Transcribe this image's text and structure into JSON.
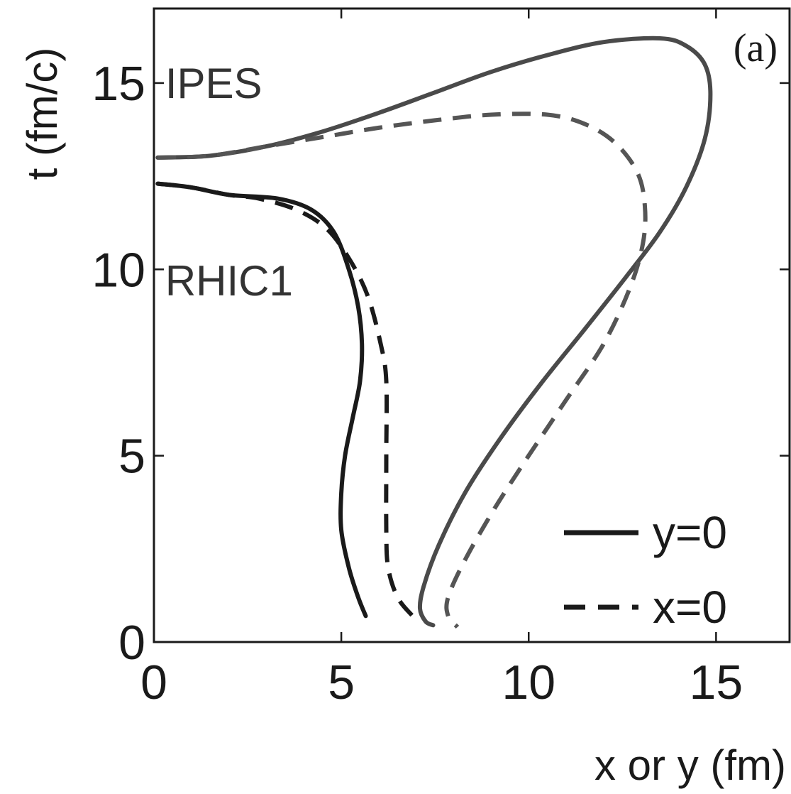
{
  "chart_data": {
    "type": "line",
    "title": "",
    "panel_label": "(a)",
    "xlabel": "x or y (fm)",
    "ylabel": "t (fm/c)",
    "xlim": [
      0,
      17
    ],
    "ylim": [
      0,
      17
    ],
    "xticks": [
      0,
      5,
      10,
      15
    ],
    "yticks": [
      0,
      5,
      10,
      15
    ],
    "grid": false,
    "legend": {
      "placement": "bottom-right",
      "entries": [
        {
          "label": "y=0",
          "style": "solid"
        },
        {
          "label": "x=0",
          "style": "dashed"
        }
      ]
    },
    "annotations": [
      {
        "text": "IPES",
        "x": 0.3,
        "y": 14.6
      },
      {
        "text": "RHIC1",
        "x": 0.3,
        "y": 9.3
      }
    ],
    "series": [
      {
        "group": "RHIC1",
        "style": "solid",
        "color": "#1a1a1a",
        "points": [
          [
            0.1,
            12.3
          ],
          [
            1.0,
            12.2
          ],
          [
            2.0,
            12.0
          ],
          [
            3.3,
            11.9
          ],
          [
            4.2,
            11.6
          ],
          [
            4.8,
            11.0
          ],
          [
            5.2,
            10.0
          ],
          [
            5.45,
            9.0
          ],
          [
            5.55,
            8.0
          ],
          [
            5.5,
            7.0
          ],
          [
            5.3,
            6.0
          ],
          [
            5.1,
            5.0
          ],
          [
            5.0,
            4.0
          ],
          [
            5.0,
            3.0
          ],
          [
            5.2,
            2.0
          ],
          [
            5.45,
            1.2
          ],
          [
            5.65,
            0.7
          ]
        ]
      },
      {
        "group": "RHIC1",
        "style": "dashed",
        "color": "#1a1a1a",
        "points": [
          [
            0.1,
            12.3
          ],
          [
            1.0,
            12.2
          ],
          [
            2.0,
            12.0
          ],
          [
            2.8,
            11.9
          ],
          [
            3.8,
            11.6
          ],
          [
            4.6,
            11.1
          ],
          [
            5.2,
            10.3
          ],
          [
            5.7,
            9.3
          ],
          [
            6.05,
            8.0
          ],
          [
            6.2,
            7.0
          ],
          [
            6.2,
            5.0
          ],
          [
            6.2,
            3.0
          ],
          [
            6.25,
            2.0
          ],
          [
            6.5,
            1.2
          ],
          [
            6.9,
            0.7
          ]
        ]
      },
      {
        "group": "IPES",
        "style": "solid",
        "color": "#4a4a4a",
        "points": [
          [
            0.1,
            13.0
          ],
          [
            1.5,
            13.05
          ],
          [
            3.0,
            13.3
          ],
          [
            4.5,
            13.7
          ],
          [
            6.0,
            14.2
          ],
          [
            7.5,
            14.75
          ],
          [
            9.0,
            15.3
          ],
          [
            10.5,
            15.75
          ],
          [
            12.0,
            16.1
          ],
          [
            13.5,
            16.2
          ],
          [
            14.2,
            16.0
          ],
          [
            14.7,
            15.5
          ],
          [
            14.85,
            14.7
          ],
          [
            14.7,
            13.5
          ],
          [
            14.2,
            12.2
          ],
          [
            13.5,
            11.0
          ],
          [
            12.6,
            9.8
          ],
          [
            11.5,
            8.4
          ],
          [
            10.3,
            6.9
          ],
          [
            9.2,
            5.4
          ],
          [
            8.3,
            4.0
          ],
          [
            7.6,
            2.6
          ],
          [
            7.2,
            1.5
          ],
          [
            7.1,
            0.9
          ],
          [
            7.25,
            0.55
          ],
          [
            7.45,
            0.45
          ]
        ]
      },
      {
        "group": "IPES",
        "style": "dashed",
        "color": "#555555",
        "points": [
          [
            0.1,
            13.0
          ],
          [
            1.5,
            13.05
          ],
          [
            3.0,
            13.3
          ],
          [
            4.5,
            13.55
          ],
          [
            6.0,
            13.8
          ],
          [
            7.5,
            14.0
          ],
          [
            9.0,
            14.15
          ],
          [
            10.5,
            14.15
          ],
          [
            11.5,
            13.9
          ],
          [
            12.3,
            13.4
          ],
          [
            12.9,
            12.6
          ],
          [
            13.1,
            11.7
          ],
          [
            13.05,
            10.7
          ],
          [
            12.7,
            9.5
          ],
          [
            12.0,
            8.0
          ],
          [
            11.0,
            6.5
          ],
          [
            10.0,
            5.0
          ],
          [
            9.1,
            3.6
          ],
          [
            8.3,
            2.2
          ],
          [
            7.85,
            1.2
          ],
          [
            7.85,
            0.7
          ],
          [
            8.1,
            0.4
          ]
        ]
      }
    ]
  }
}
